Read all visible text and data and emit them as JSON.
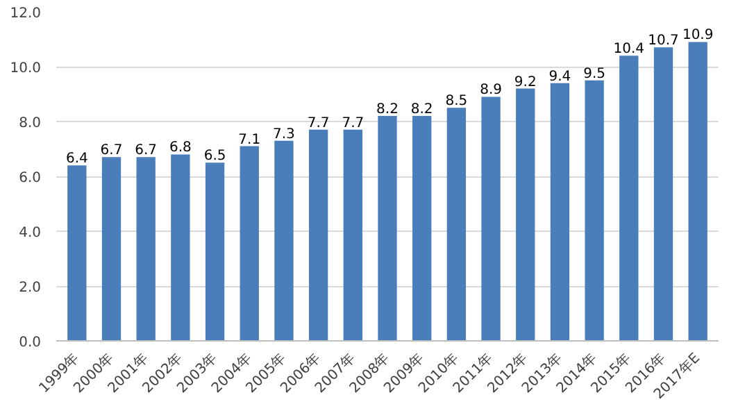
{
  "chart_data": {
    "type": "bar",
    "categories": [
      "1999年",
      "2000年",
      "2001年",
      "2002年",
      "2003年",
      "2004年",
      "2005年",
      "2006年",
      "2007年",
      "2008年",
      "2009年",
      "2010年",
      "2011年",
      "2012年",
      "2013年",
      "2014年",
      "2015年",
      "2016年",
      "2017年E"
    ],
    "values": [
      6.4,
      6.7,
      6.7,
      6.8,
      6.5,
      7.1,
      7.3,
      7.7,
      7.7,
      8.2,
      8.2,
      8.5,
      8.9,
      9.2,
      9.4,
      9.5,
      10.4,
      10.7,
      10.9
    ],
    "color": "#4a7ebb",
    "ylim": [
      0,
      12
    ],
    "yticks": [
      {
        "value": 0,
        "label": "0.0"
      },
      {
        "value": 2,
        "label": "2.0"
      },
      {
        "value": 4,
        "label": "4.0"
      },
      {
        "value": 6,
        "label": "6.0"
      },
      {
        "value": 8,
        "label": "8.0"
      },
      {
        "value": 10,
        "label": "10.0"
      },
      {
        "value": 12,
        "label": "12.0"
      }
    ],
    "grid": "y",
    "data_labels": true
  }
}
